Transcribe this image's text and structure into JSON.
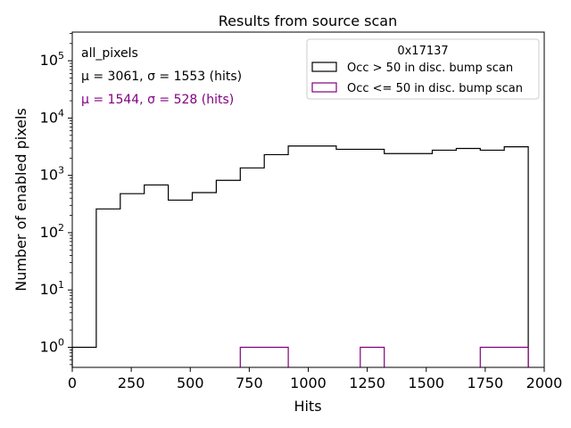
{
  "chart_data": {
    "type": "histogram",
    "title": "Results from source scan",
    "xlabel": "Hits",
    "ylabel": "Number of enabled pixels",
    "xlim": [
      0,
      2000
    ],
    "ylim_log10": [
      -0.35,
      5.5
    ],
    "yscale": "log",
    "x_ticks": [
      0,
      250,
      500,
      750,
      1000,
      1250,
      1500,
      1750,
      2000
    ],
    "x_tick_labels": [
      "0",
      "250",
      "500",
      "750",
      "1000",
      "1250",
      "1500",
      "1750",
      "2000"
    ],
    "y_tick_exponents": [
      0,
      1,
      2,
      3,
      4,
      5
    ],
    "bin_edges": [
      0,
      101.7,
      203.4,
      305.1,
      406.8,
      508.5,
      610.2,
      711.9,
      813.6,
      915.3,
      1017,
      1118.7,
      1220.4,
      1322.1,
      1423.8,
      1525.5,
      1627.2,
      1728.9,
      1830.6,
      1932.3
    ],
    "series": [
      {
        "name": "Occ > 50 in disc. bump scan",
        "color": "#000000",
        "values": [
          1,
          260,
          480,
          680,
          370,
          500,
          820,
          1350,
          2300,
          3250,
          3250,
          2850,
          2850,
          2400,
          2400,
          2750,
          2950,
          2750,
          3150
        ]
      },
      {
        "name": "Occ <= 50 in disc. bump scan",
        "color": "#800080",
        "values": [
          0,
          0,
          0,
          0,
          0,
          0,
          0,
          1,
          1,
          0,
          0,
          0,
          1,
          0,
          0,
          0,
          0,
          1,
          1
        ]
      }
    ],
    "annotations": [
      {
        "text": "all_pixels",
        "color": "#000000"
      },
      {
        "text": "μ = 3061, σ = 1553 (hits)",
        "color": "#000000"
      },
      {
        "text": "μ = 1544, σ = 528 (hits)",
        "color": "#800080"
      }
    ],
    "legend": {
      "title": "0x17137",
      "position": "top-right"
    }
  }
}
